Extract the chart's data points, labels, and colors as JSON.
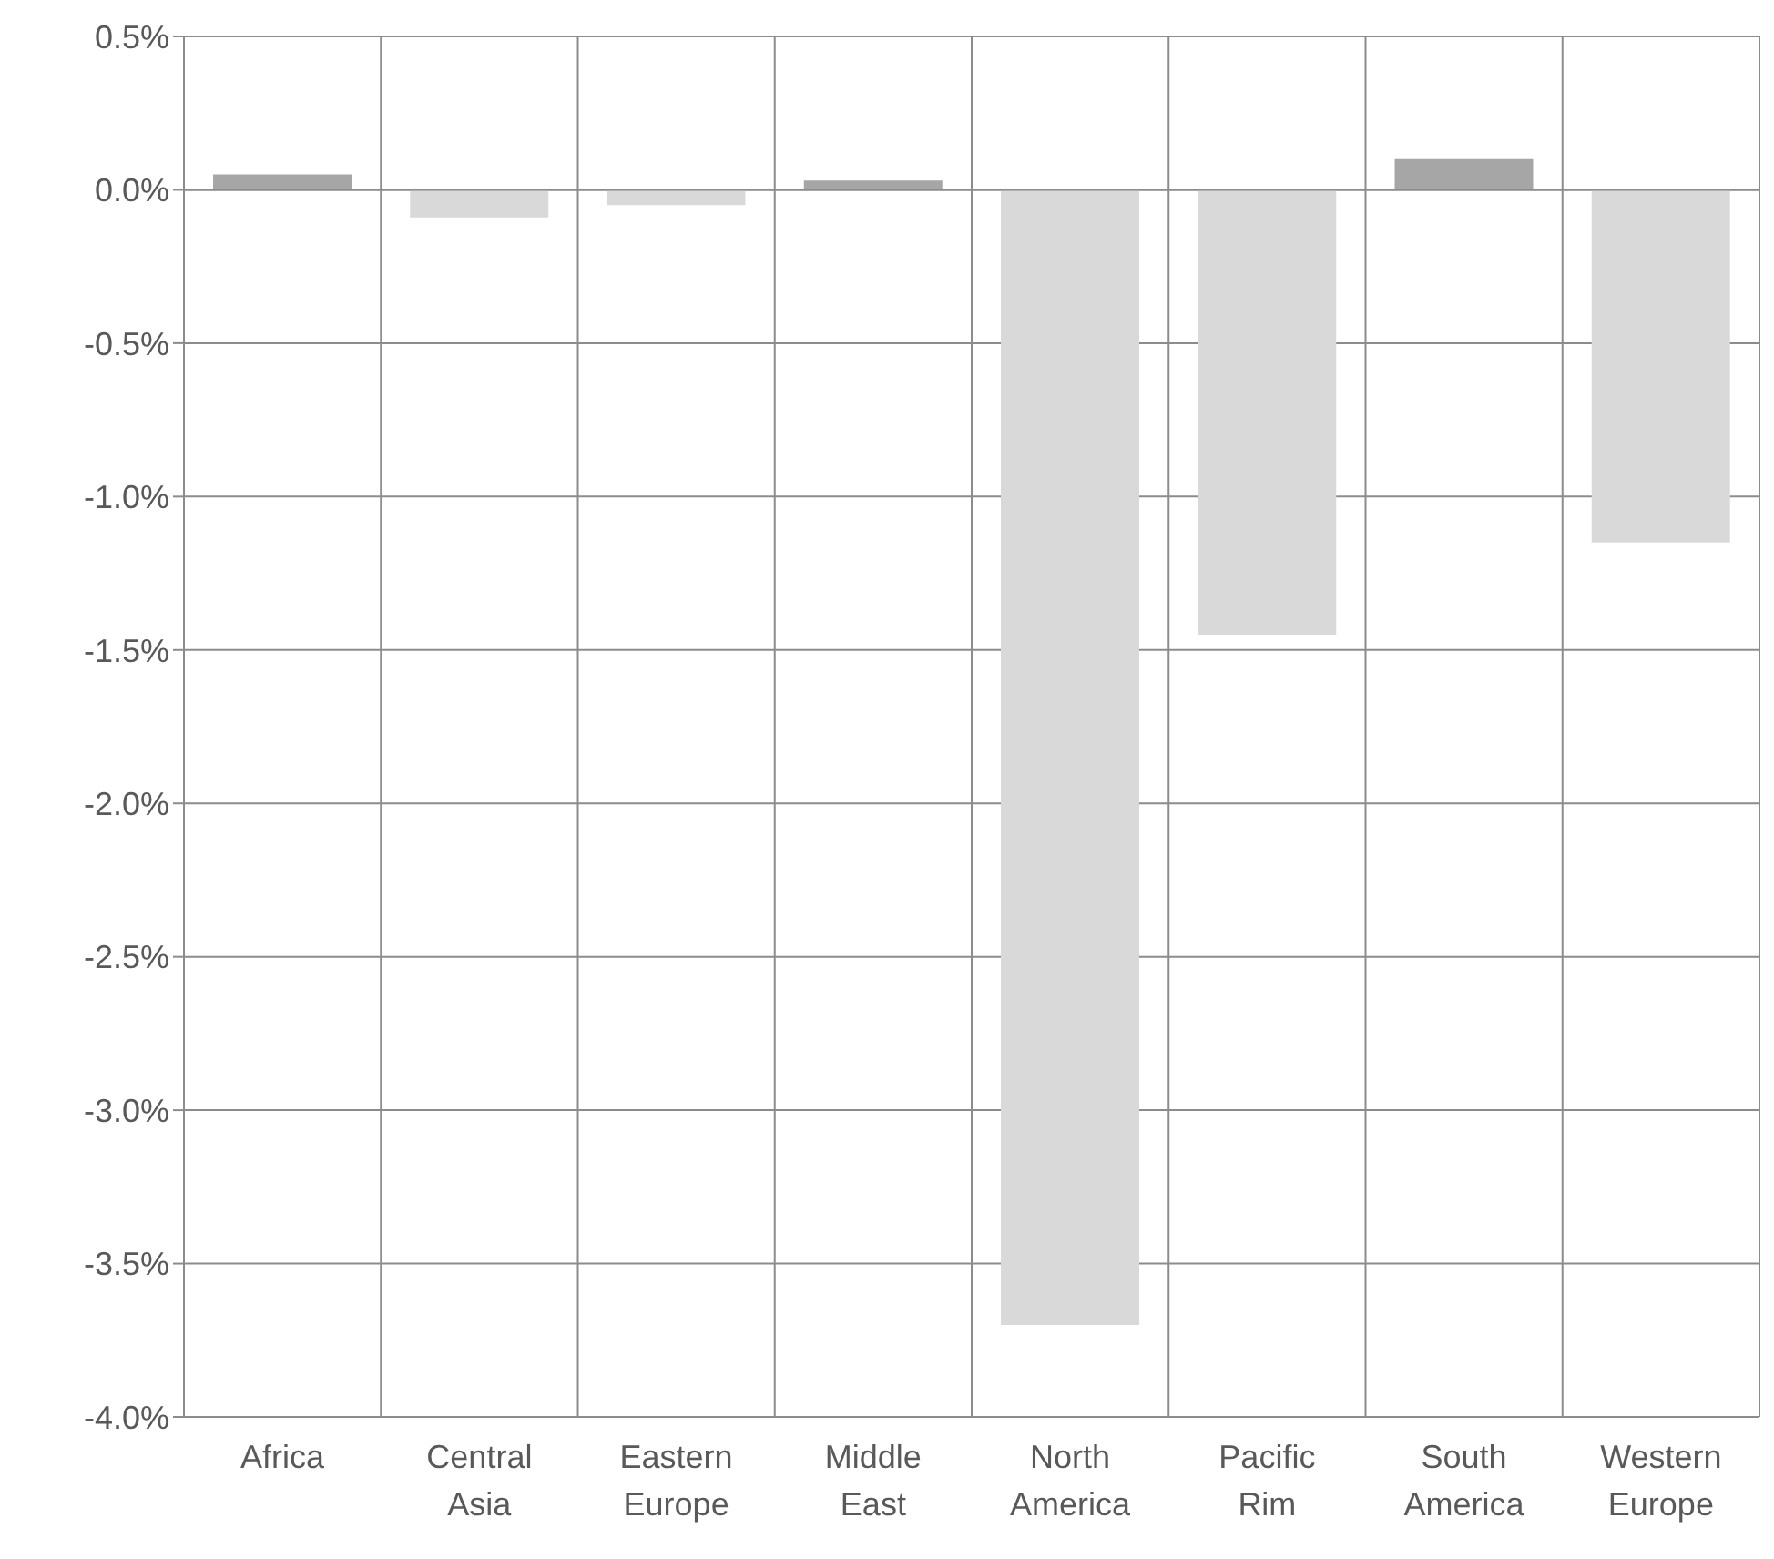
{
  "chart_data": {
    "type": "bar",
    "categories": [
      "Africa",
      "Central Asia",
      "Eastern Europe",
      "Middle East",
      "North America",
      "Pacific Rim",
      "South America",
      "Western Europe"
    ],
    "values": [
      0.05,
      -0.09,
      -0.05,
      0.03,
      -3.7,
      -1.45,
      0.1,
      -1.15
    ],
    "colors": [
      "#a6a6a6",
      "#d9d9d9",
      "#d9d9d9",
      "#a6a6a6",
      "#d9d9d9",
      "#d9d9d9",
      "#a6a6a6",
      "#d9d9d9"
    ],
    "ylim": [
      -4.0,
      0.5
    ],
    "yticks": [
      {
        "value": 0.5,
        "label": "0.5%"
      },
      {
        "value": 0,
        "label": "0.0%"
      },
      {
        "value": -0.5,
        "label": "-0.5%"
      },
      {
        "value": -1,
        "label": "-1.0%"
      },
      {
        "value": -1.5,
        "label": "-1.5%"
      },
      {
        "value": -2,
        "label": "-2.0%"
      },
      {
        "value": -2.5,
        "label": "-2.5%"
      },
      {
        "value": -3,
        "label": "-3.0%"
      },
      {
        "value": -3.5,
        "label": "-3.5%"
      },
      {
        "value": -4,
        "label": "-4.0%"
      }
    ],
    "grid": true,
    "legend": false
  }
}
